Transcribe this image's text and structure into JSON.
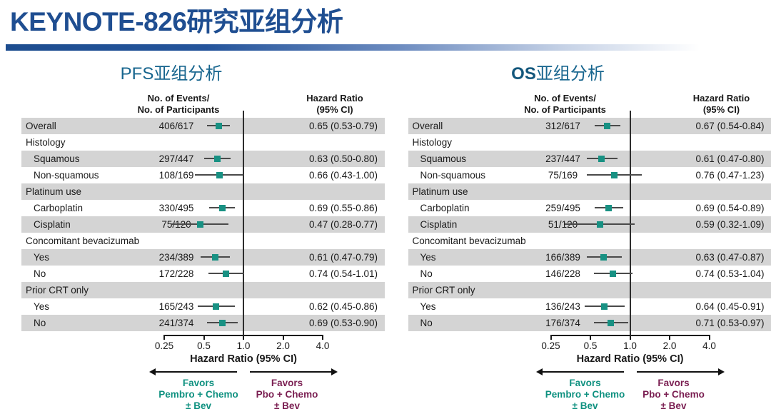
{
  "title": "KEYNOTE-826研究亚组分析",
  "colors": {
    "title_blue": "#1F4E91",
    "panel_title_teal": "#17658E",
    "marker_teal": "#189183",
    "favors_left_teal": "#0F9180",
    "favors_right_maroon": "#7A1E51",
    "stripe_gray": "#D4D4D4"
  },
  "shared": {
    "events_header": [
      "No. of Events/",
      "No. of Participants"
    ],
    "hr_header": [
      "Hazard Ratio",
      "(95% CI)"
    ],
    "axis": {
      "scale": "log2",
      "min": 0.25,
      "max": 4.0,
      "refline_value": 1.0,
      "ticks": [
        {
          "v": 0.25,
          "label": "0.25"
        },
        {
          "v": 0.5,
          "label": "0.5"
        },
        {
          "v": 1.0,
          "label": "1.0"
        },
        {
          "v": 2.0,
          "label": "2.0"
        },
        {
          "v": 4.0,
          "label": "4.0"
        }
      ],
      "label": "Hazard Ratio (95% CI)"
    },
    "favors_left": [
      "Favors",
      "Pembro + Chemo",
      "± Bev"
    ],
    "favors_right": [
      "Favors",
      "Pbo + Chemo",
      "± Bev"
    ]
  },
  "chart_data": [
    {
      "type": "forest",
      "title_prefix": "PFS",
      "title_suffix": "亚组分析",
      "title_bold_prefix": false,
      "rows": [
        {
          "kind": "data",
          "label": "Overall",
          "events": "406/617",
          "hr": 0.65,
          "ci_low": 0.53,
          "ci_high": 0.79,
          "hr_text": "0.65 (0.53-0.79)",
          "indent": false,
          "shaded": true
        },
        {
          "kind": "category",
          "label": "Histology",
          "shaded": false
        },
        {
          "kind": "data",
          "label": "Squamous",
          "events": "297/447",
          "hr": 0.63,
          "ci_low": 0.5,
          "ci_high": 0.8,
          "hr_text": "0.63 (0.50-0.80)",
          "indent": true,
          "shaded": true
        },
        {
          "kind": "data",
          "label": "Non-squamous",
          "events": "108/169",
          "hr": 0.66,
          "ci_low": 0.43,
          "ci_high": 1.0,
          "hr_text": "0.66 (0.43-1.00)",
          "indent": true,
          "shaded": false
        },
        {
          "kind": "category",
          "label": "Platinum use",
          "shaded": true
        },
        {
          "kind": "data",
          "label": "Carboplatin",
          "events": "330/495",
          "hr": 0.69,
          "ci_low": 0.55,
          "ci_high": 0.86,
          "hr_text": "0.69 (0.55-0.86)",
          "indent": true,
          "shaded": false
        },
        {
          "kind": "data",
          "label": "Cisplatin",
          "events": "75/120",
          "hr": 0.47,
          "ci_low": 0.28,
          "ci_high": 0.77,
          "hr_text": "0.47 (0.28-0.77)",
          "indent": true,
          "shaded": true
        },
        {
          "kind": "category",
          "label": "Concomitant bevacizumab",
          "shaded": false
        },
        {
          "kind": "data",
          "label": "Yes",
          "events": "234/389",
          "hr": 0.61,
          "ci_low": 0.47,
          "ci_high": 0.79,
          "hr_text": "0.61 (0.47-0.79)",
          "indent": true,
          "shaded": true
        },
        {
          "kind": "data",
          "label": "No",
          "events": "172/228",
          "hr": 0.74,
          "ci_low": 0.54,
          "ci_high": 1.01,
          "hr_text": "0.74 (0.54-1.01)",
          "indent": true,
          "shaded": false
        },
        {
          "kind": "category",
          "label": "Prior CRT only",
          "shaded": true
        },
        {
          "kind": "data",
          "label": "Yes",
          "events": "165/243",
          "hr": 0.62,
          "ci_low": 0.45,
          "ci_high": 0.86,
          "hr_text": "0.62 (0.45-0.86)",
          "indent": true,
          "shaded": false
        },
        {
          "kind": "data",
          "label": "No",
          "events": "241/374",
          "hr": 0.69,
          "ci_low": 0.53,
          "ci_high": 0.9,
          "hr_text": "0.69 (0.53-0.90)",
          "indent": true,
          "shaded": true
        }
      ]
    },
    {
      "type": "forest",
      "title_prefix": "OS",
      "title_suffix": "亚组分析",
      "title_bold_prefix": true,
      "rows": [
        {
          "kind": "data",
          "label": "Overall",
          "events": "312/617",
          "hr": 0.67,
          "ci_low": 0.54,
          "ci_high": 0.84,
          "hr_text": "0.67 (0.54-0.84)",
          "indent": false,
          "shaded": true
        },
        {
          "kind": "category",
          "label": "Histology",
          "shaded": false
        },
        {
          "kind": "data",
          "label": "Squamous",
          "events": "237/447",
          "hr": 0.61,
          "ci_low": 0.47,
          "ci_high": 0.8,
          "hr_text": "0.61 (0.47-0.80)",
          "indent": true,
          "shaded": true
        },
        {
          "kind": "data",
          "label": "Non-squamous",
          "events": "75/169",
          "hr": 0.76,
          "ci_low": 0.47,
          "ci_high": 1.23,
          "hr_text": "0.76 (0.47-1.23)",
          "indent": true,
          "shaded": false
        },
        {
          "kind": "category",
          "label": "Platinum use",
          "shaded": true
        },
        {
          "kind": "data",
          "label": "Carboplatin",
          "events": "259/495",
          "hr": 0.69,
          "ci_low": 0.54,
          "ci_high": 0.89,
          "hr_text": "0.69 (0.54-0.89)",
          "indent": true,
          "shaded": false
        },
        {
          "kind": "data",
          "label": "Cisplatin",
          "events": "51/120",
          "hr": 0.59,
          "ci_low": 0.32,
          "ci_high": 1.09,
          "hr_text": "0.59 (0.32-1.09)",
          "indent": true,
          "shaded": true
        },
        {
          "kind": "category",
          "label": "Concomitant bevacizumab",
          "shaded": false
        },
        {
          "kind": "data",
          "label": "Yes",
          "events": "166/389",
          "hr": 0.63,
          "ci_low": 0.47,
          "ci_high": 0.87,
          "hr_text": "0.63 (0.47-0.87)",
          "indent": true,
          "shaded": true
        },
        {
          "kind": "data",
          "label": "No",
          "events": "146/228",
          "hr": 0.74,
          "ci_low": 0.53,
          "ci_high": 1.04,
          "hr_text": "0.74 (0.53-1.04)",
          "indent": true,
          "shaded": false
        },
        {
          "kind": "category",
          "label": "Prior CRT only",
          "shaded": true
        },
        {
          "kind": "data",
          "label": "Yes",
          "events": "136/243",
          "hr": 0.64,
          "ci_low": 0.45,
          "ci_high": 0.91,
          "hr_text": "0.64 (0.45-0.91)",
          "indent": true,
          "shaded": false
        },
        {
          "kind": "data",
          "label": "No",
          "events": "176/374",
          "hr": 0.71,
          "ci_low": 0.53,
          "ci_high": 0.97,
          "hr_text": "0.71 (0.53-0.97)",
          "indent": true,
          "shaded": true
        }
      ]
    }
  ]
}
